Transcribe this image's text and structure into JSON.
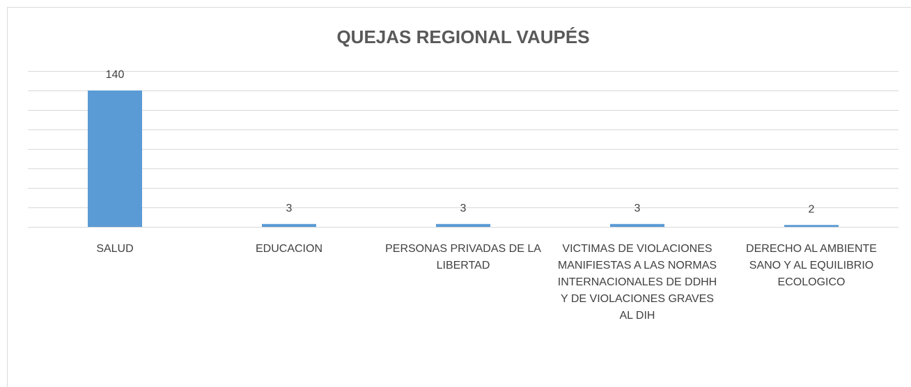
{
  "chart_data": {
    "type": "bar",
    "title": "QUEJAS REGIONAL VAUPÉS",
    "categories": [
      "SALUD",
      "EDUCACION",
      "PERSONAS PRIVADAS DE LA LIBERTAD",
      "VICTIMAS DE VIOLACIONES MANIFIESTAS A LAS NORMAS INTERNACIONALES DE DDHH Y DE VIOLACIONES GRAVES AL DIH",
      "DERECHO AL AMBIENTE SANO Y AL EQUILIBRIO ECOLOGICO"
    ],
    "values": [
      140,
      3,
      3,
      3,
      2
    ],
    "color": "#5b9bd5",
    "ylim": [
      0,
      160
    ],
    "yticks": [
      0,
      20,
      40,
      60,
      80,
      100,
      120,
      140,
      160
    ],
    "grid": true
  }
}
